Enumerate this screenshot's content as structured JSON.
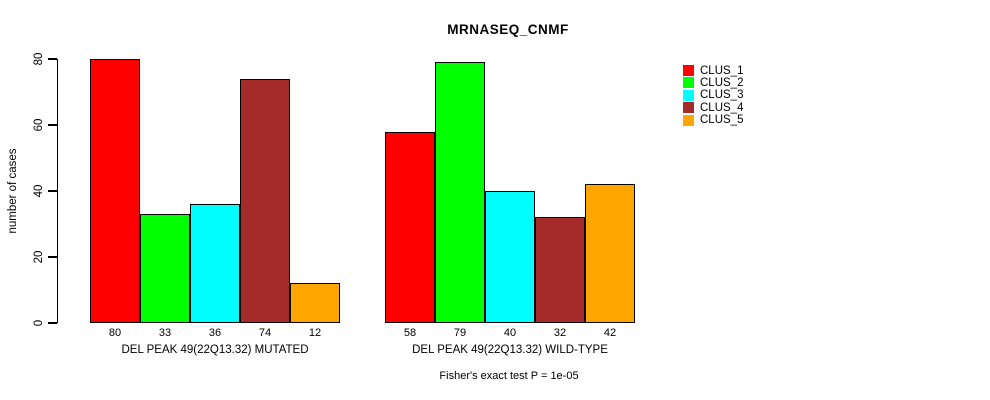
{
  "chart_data": {
    "type": "bar",
    "title": "MRNASEQ_CNMF",
    "ylabel": "number of cases",
    "ylim": [
      0,
      80
    ],
    "yticks": [
      0,
      20,
      40,
      60,
      80
    ],
    "grid": false,
    "legend_position": "right",
    "bar_value_labels": true,
    "groups": [
      {
        "label": "DEL PEAK 49(22Q13.32) MUTATED",
        "values": [
          80,
          33,
          36,
          74,
          12
        ]
      },
      {
        "label": "DEL PEAK 49(22Q13.32) WILD-TYPE",
        "values": [
          58,
          79,
          40,
          32,
          42
        ]
      }
    ],
    "series": [
      {
        "name": "CLUS_1",
        "color": "#FF0000",
        "values": [
          80,
          58
        ]
      },
      {
        "name": "CLUS_2",
        "color": "#00FF00",
        "values": [
          33,
          79
        ]
      },
      {
        "name": "CLUS_3",
        "color": "#00FFFF",
        "values": [
          36,
          40
        ]
      },
      {
        "name": "CLUS_4",
        "color": "#A52A2A",
        "values": [
          74,
          32
        ]
      },
      {
        "name": "CLUS_5",
        "color": "#FFA500",
        "values": [
          12,
          42
        ]
      }
    ],
    "annotation": "Fisher's exact test P = 1e-05"
  }
}
